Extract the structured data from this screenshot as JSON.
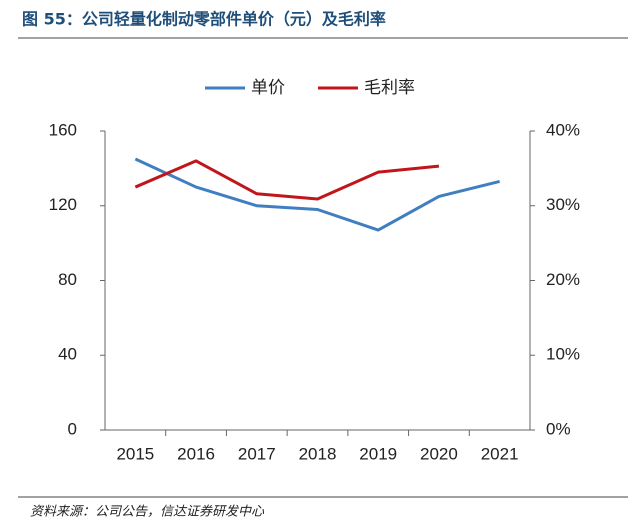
{
  "chart_data": {
    "type": "line",
    "title": "图 55：公司轻量化制动零部件单价（元）及毛利率",
    "source": "资料来源：公司公告，信达证券研发中心",
    "categories": [
      "2015",
      "2016",
      "2017",
      "2018",
      "2019",
      "2020",
      "2021"
    ],
    "series": [
      {
        "name": "单价",
        "color": "#3f7fc1",
        "values": [
          145,
          130,
          120,
          118,
          107,
          125,
          133
        ]
      },
      {
        "name": "毛利率",
        "color": "#c0161b",
        "axis": "y2",
        "values": [
          32.5,
          36,
          31.6,
          30.9,
          34.5,
          35.3,
          null
        ]
      }
    ],
    "ylim": [
      0,
      160
    ],
    "yticks": [
      0,
      40,
      80,
      120,
      160
    ],
    "y2lim": [
      0,
      40
    ],
    "y2ticks": [
      {
        "value": 0,
        "label": "0%"
      },
      {
        "value": 10,
        "label": "10%"
      },
      {
        "value": 20,
        "label": "20%"
      },
      {
        "value": 30,
        "label": "30%"
      },
      {
        "value": 40,
        "label": "40%"
      }
    ],
    "legend": "top"
  }
}
